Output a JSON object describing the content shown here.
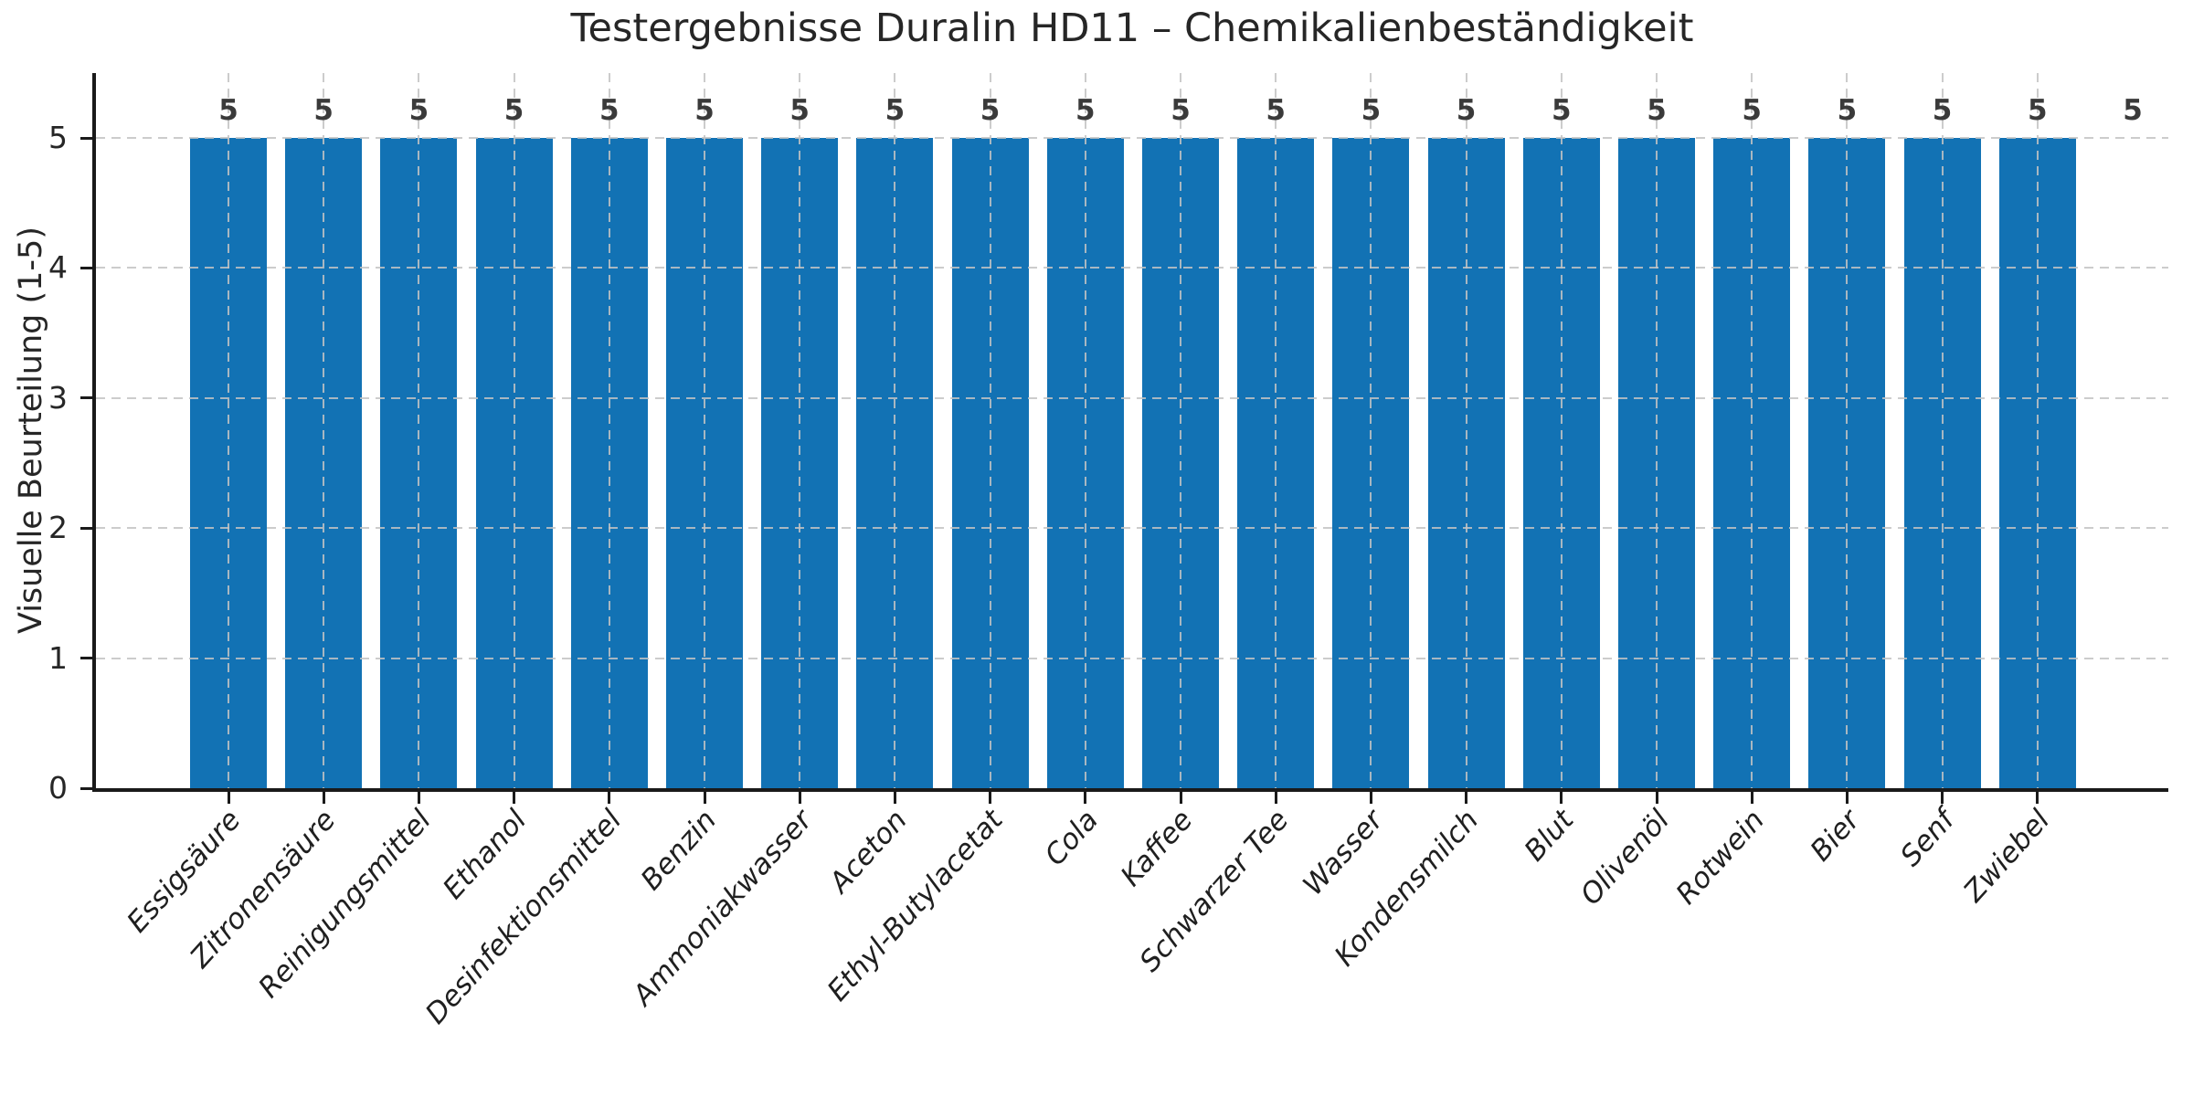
{
  "chart_data": {
    "type": "bar",
    "title": "Testergebnisse Duralin HD11 – Chemikalienbeständigkeit",
    "ylabel": "Visuelle Beurteilung (1-5)",
    "xlabel": "",
    "categories": [
      "Essigsäure",
      "Zitronensäure",
      "Reinigungsmittel",
      "Ethanol",
      "Desinfektionsmittel",
      "Benzin",
      "Ammoniakwasser",
      "Aceton",
      "Ethyl-Butylacetat",
      "Cola",
      "Kaffee",
      "Schwarzer Tee",
      "Wasser",
      "Kondensmilch",
      "Blut",
      "Olivenöl",
      "Rotwein",
      "Bier",
      "Senf",
      "Zwiebel"
    ],
    "values": [
      5,
      5,
      5,
      5,
      5,
      5,
      5,
      5,
      5,
      5,
      5,
      5,
      5,
      5,
      5,
      5,
      5,
      5,
      5,
      5
    ],
    "value_labels_shown": true,
    "extra_value_label": "5",
    "yticks": [
      0,
      1,
      2,
      3,
      4,
      5
    ],
    "ylim": [
      0,
      5.5
    ],
    "x_tick_rotation_deg": 48,
    "grid": {
      "style": "dashed",
      "axes": "both",
      "drawn_above_bars": true
    },
    "legend": "none",
    "colors": {
      "bar": "#1272b4",
      "grid": "#c3c3c3",
      "axis": "#1a1a1a",
      "title_text": "#262626",
      "tick_text": "#262626",
      "value_label_text": "#3a3a3a"
    }
  }
}
